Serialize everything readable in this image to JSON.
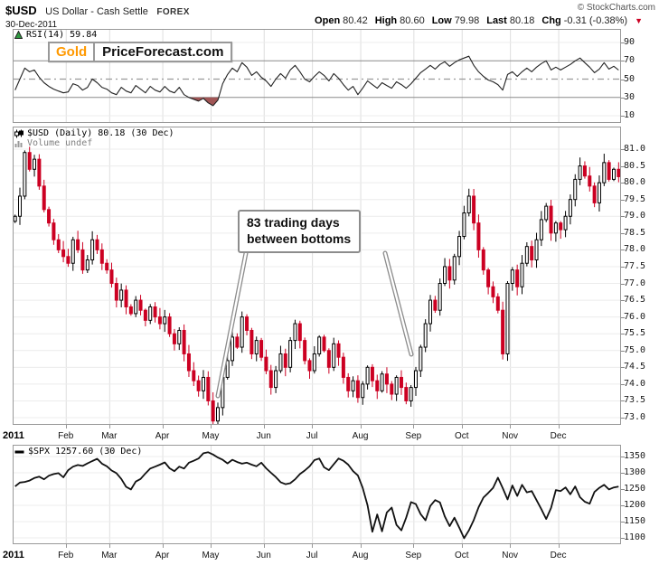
{
  "header": {
    "symbol": "$USD",
    "name": "US Dollar - Cash Settle",
    "exchange": "FOREX",
    "copyright": "© StockCharts.com",
    "date": "30-Dec-2011",
    "quote": [
      {
        "label": "Open",
        "value": "80.42"
      },
      {
        "label": "High",
        "value": "80.60"
      },
      {
        "label": "Low",
        "value": "79.98"
      },
      {
        "label": "Last",
        "value": "80.18"
      },
      {
        "label": "Chg",
        "value": "-0.31 (-0.38%)"
      }
    ]
  },
  "logo": {
    "part1": "Gold",
    "part2": "PriceForecast.com"
  },
  "annotation": {
    "line1": "83 trading days",
    "line2": "between bottoms"
  },
  "legends": {
    "rsi": "RSI(14) 59.84",
    "usd": "$USD (Daily) 80.18 (30 Dec)",
    "volume": "Volume undef",
    "spx": "$SPX 1257.60 (30 Dec)"
  },
  "xaxis": {
    "year": "2011",
    "months": [
      "Feb",
      "Mar",
      "Apr",
      "May",
      "Jun",
      "Jul",
      "Aug",
      "Sep",
      "Oct",
      "Nov",
      "Dec"
    ]
  },
  "colors": {
    "candle_up": "#000000",
    "candle_down": "#cc0022",
    "rsi_line": "#222222",
    "rsi_oversold_fill": "#a05555",
    "spx_line": "#111111",
    "grid": "#ececec",
    "grid_month": "#dedede",
    "band_line": "#8a8a8a",
    "mid_line": "#9a9a9a",
    "panel_border": "#999999",
    "axis_text": "#1a1a1a",
    "muted_text": "#808080",
    "logo_orange": "#ff9900",
    "chg_triangle": "#cc0022",
    "callout_border": "#8c8c8c"
  },
  "chart_data": [
    {
      "id": "rsi",
      "type": "line",
      "title": "RSI(14)",
      "last": 59.84,
      "ylim": [
        0,
        100
      ],
      "yticks": [
        90,
        70,
        50,
        30,
        10
      ],
      "overbought": 70,
      "oversold": 30,
      "midline": 50,
      "x_range": "Jan-2011 to Dec-2011 (daily, sampled)",
      "month_start_indices": [
        0,
        11,
        20,
        31,
        41,
        52,
        62,
        72,
        83,
        93,
        103,
        113
      ],
      "values": [
        38,
        50,
        62,
        58,
        60,
        52,
        46,
        42,
        39,
        37,
        35,
        36,
        45,
        43,
        38,
        41,
        50,
        46,
        41,
        39,
        35,
        33,
        41,
        37,
        35,
        43,
        39,
        35,
        42,
        38,
        36,
        42,
        37,
        35,
        41,
        33,
        30,
        28,
        26,
        29,
        24,
        21,
        27,
        45,
        55,
        62,
        58,
        68,
        63,
        54,
        58,
        52,
        48,
        42,
        50,
        56,
        51,
        60,
        65,
        58,
        50,
        47,
        53,
        58,
        54,
        48,
        56,
        51,
        44,
        38,
        42,
        33,
        40,
        48,
        44,
        40,
        46,
        43,
        40,
        47,
        44,
        40,
        45,
        51,
        57,
        61,
        65,
        61,
        66,
        69,
        64,
        68,
        71,
        73,
        75,
        65,
        58,
        53,
        49,
        47,
        44,
        38,
        55,
        58,
        53,
        58,
        62,
        58,
        63,
        67,
        70,
        60,
        63,
        60,
        63,
        66,
        70,
        73,
        68,
        63,
        57,
        61,
        68,
        61,
        64,
        59.84
      ]
    },
    {
      "id": "usd",
      "type": "candlestick",
      "title": "$USD (Daily)",
      "last": 80.18,
      "open": 80.42,
      "high": 80.6,
      "low": 79.98,
      "change": -0.31,
      "change_pct": -0.38,
      "ylim": [
        72.8,
        81.2
      ],
      "yticks": [
        81.0,
        80.5,
        80.0,
        79.5,
        79.0,
        78.5,
        78.0,
        77.5,
        77.0,
        76.5,
        76.0,
        75.5,
        75.0,
        74.5,
        74.0,
        73.5,
        73.0
      ],
      "bottoms_annotated": {
        "first": "early May ~72.9",
        "second": "late Aug ~73.5",
        "label": "83 trading days between bottoms"
      },
      "x_range": "Jan-2011 to Dec-2011 (daily, sampled)",
      "month_start_indices": [
        0,
        11,
        20,
        31,
        41,
        52,
        62,
        72,
        83,
        93,
        103,
        113
      ],
      "closes": [
        79.0,
        79.6,
        80.9,
        80.4,
        80.7,
        79.9,
        79.2,
        78.8,
        78.3,
        78.0,
        77.8,
        77.6,
        78.3,
        78.0,
        77.4,
        77.7,
        78.3,
        78.0,
        77.6,
        77.4,
        77.0,
        76.5,
        76.8,
        76.3,
        76.1,
        76.5,
        76.2,
        75.9,
        76.3,
        76.0,
        75.8,
        76.0,
        75.5,
        75.2,
        75.6,
        74.9,
        74.4,
        74.1,
        73.8,
        74.2,
        73.5,
        72.9,
        73.3,
        74.2,
        74.7,
        75.4,
        75.1,
        76.0,
        75.6,
        74.9,
        75.3,
        74.8,
        74.4,
        73.9,
        74.4,
        74.9,
        74.5,
        75.3,
        75.8,
        75.3,
        74.7,
        74.4,
        74.9,
        75.4,
        75.0,
        74.5,
        75.2,
        74.8,
        74.2,
        73.8,
        74.1,
        73.6,
        74.0,
        74.5,
        74.1,
        73.8,
        74.3,
        74.0,
        73.7,
        74.2,
        73.9,
        73.5,
        73.9,
        74.4,
        75.1,
        75.8,
        76.5,
        76.2,
        77.0,
        77.5,
        77.1,
        77.8,
        78.4,
        79.1,
        79.6,
        78.8,
        78.0,
        77.4,
        76.9,
        76.6,
        76.2,
        74.9,
        77.0,
        77.4,
        76.9,
        77.6,
        78.1,
        77.7,
        78.3,
        78.9,
        79.3,
        78.5,
        78.8,
        78.6,
        79.0,
        79.5,
        80.1,
        80.5,
        80.2,
        79.9,
        79.4,
        80.0,
        80.6,
        80.1,
        80.4,
        80.18
      ]
    },
    {
      "id": "spx",
      "type": "line",
      "title": "$SPX",
      "last": 1257.6,
      "ylim": [
        1090,
        1365
      ],
      "yticks": [
        1350,
        1300,
        1250,
        1200,
        1150,
        1100
      ],
      "x_range": "Jan-2011 to Dec-2011 (daily, sampled)",
      "month_start_indices": [
        0,
        11,
        20,
        31,
        41,
        52,
        62,
        72,
        83,
        93,
        103,
        113
      ],
      "values": [
        1258,
        1270,
        1272,
        1276,
        1284,
        1288,
        1280,
        1291,
        1296,
        1299,
        1286,
        1308,
        1319,
        1324,
        1321,
        1329,
        1336,
        1343,
        1328,
        1320,
        1307,
        1299,
        1281,
        1257,
        1249,
        1273,
        1281,
        1298,
        1313,
        1319,
        1325,
        1332,
        1314,
        1305,
        1319,
        1313,
        1331,
        1337,
        1344,
        1360,
        1363,
        1356,
        1347,
        1340,
        1329,
        1340,
        1333,
        1328,
        1331,
        1325,
        1320,
        1331,
        1314,
        1300,
        1287,
        1271,
        1265,
        1268,
        1280,
        1296,
        1307,
        1320,
        1339,
        1344,
        1317,
        1308,
        1326,
        1344,
        1337,
        1325,
        1305,
        1292,
        1254,
        1200,
        1119,
        1172,
        1120,
        1178,
        1193,
        1140,
        1123,
        1162,
        1210,
        1204,
        1173,
        1154,
        1198,
        1216,
        1209,
        1166,
        1136,
        1162,
        1131,
        1099,
        1123,
        1155,
        1194,
        1224,
        1238,
        1254,
        1285,
        1253,
        1218,
        1261,
        1229,
        1263,
        1240,
        1244,
        1216,
        1188,
        1158,
        1192,
        1247,
        1244,
        1255,
        1234,
        1258,
        1225,
        1211,
        1205,
        1241,
        1254,
        1263,
        1249,
        1255,
        1257.6
      ]
    }
  ]
}
